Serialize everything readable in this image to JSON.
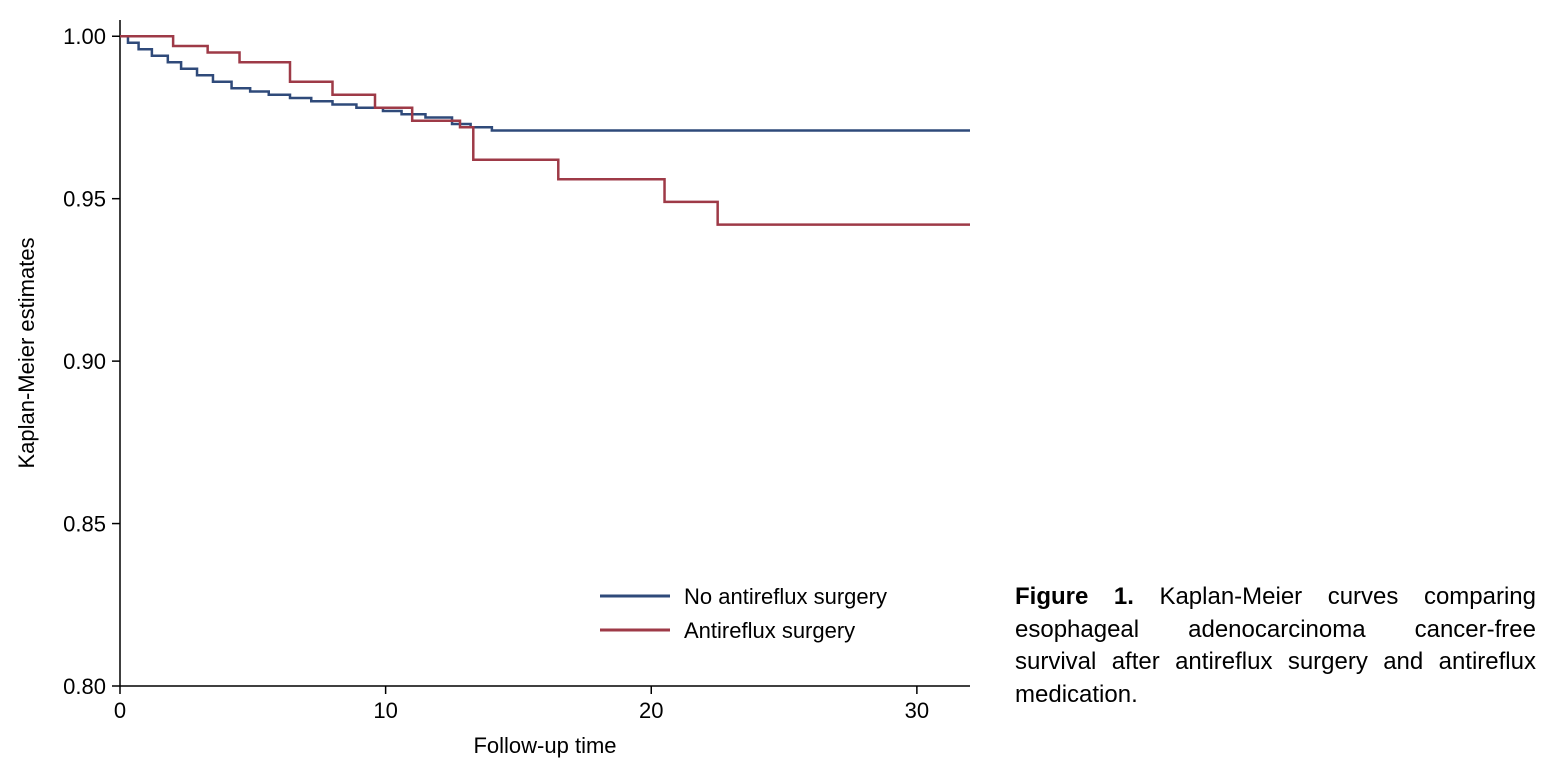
{
  "chart": {
    "type": "line",
    "background_color": "#ffffff",
    "plot_border_width": 0,
    "xlabel": "Follow-up time",
    "ylabel": "Kaplan-Meier estimates",
    "label_fontsize": 22,
    "tick_fontsize": 22,
    "xlim": [
      0,
      32
    ],
    "ylim": [
      0.8,
      1.005
    ],
    "xticks": [
      0,
      10,
      20,
      30
    ],
    "yticks": [
      0.8,
      0.85,
      0.9,
      0.95,
      1.0
    ],
    "ytick_labels": [
      "0.80",
      "0.85",
      "0.90",
      "0.95",
      "1.00"
    ],
    "xtick_labels": [
      "0",
      "10",
      "20",
      "30"
    ],
    "grid": false,
    "line_width": 2.5,
    "series": [
      {
        "name": "No antireflux surgery",
        "color": "#2f4a7a",
        "step": "post",
        "points": [
          [
            0,
            1.0
          ],
          [
            0.3,
            0.998
          ],
          [
            0.7,
            0.996
          ],
          [
            1.2,
            0.994
          ],
          [
            1.8,
            0.992
          ],
          [
            2.3,
            0.99
          ],
          [
            2.9,
            0.988
          ],
          [
            3.5,
            0.986
          ],
          [
            4.2,
            0.984
          ],
          [
            4.9,
            0.983
          ],
          [
            5.6,
            0.982
          ],
          [
            6.4,
            0.981
          ],
          [
            7.2,
            0.98
          ],
          [
            8.0,
            0.979
          ],
          [
            8.9,
            0.978
          ],
          [
            9.9,
            0.977
          ],
          [
            10.6,
            0.976
          ],
          [
            11.5,
            0.975
          ],
          [
            12.5,
            0.973
          ],
          [
            13.2,
            0.972
          ],
          [
            14.0,
            0.971
          ],
          [
            32.0,
            0.971
          ]
        ]
      },
      {
        "name": "Antireflux surgery",
        "color": "#9e3a47",
        "step": "post",
        "points": [
          [
            0,
            1.0
          ],
          [
            2.0,
            1.0
          ],
          [
            2.0,
            0.997
          ],
          [
            3.3,
            0.997
          ],
          [
            3.3,
            0.995
          ],
          [
            4.5,
            0.995
          ],
          [
            4.5,
            0.992
          ],
          [
            6.4,
            0.992
          ],
          [
            6.4,
            0.986
          ],
          [
            8.0,
            0.986
          ],
          [
            8.0,
            0.982
          ],
          [
            9.6,
            0.982
          ],
          [
            9.6,
            0.978
          ],
          [
            11.0,
            0.978
          ],
          [
            11.0,
            0.974
          ],
          [
            12.8,
            0.974
          ],
          [
            12.8,
            0.972
          ],
          [
            13.3,
            0.972
          ],
          [
            13.3,
            0.962
          ],
          [
            16.5,
            0.962
          ],
          [
            16.5,
            0.956
          ],
          [
            20.5,
            0.956
          ],
          [
            20.5,
            0.949
          ],
          [
            22.5,
            0.949
          ],
          [
            22.5,
            0.942
          ],
          [
            32.0,
            0.942
          ]
        ]
      }
    ],
    "legend": {
      "position": "bottom-right-inside",
      "fontsize": 22,
      "swatch_length": 70,
      "items": [
        {
          "series": 0,
          "label": "No antireflux surgery"
        },
        {
          "series": 1,
          "label": "Antireflux surgery"
        }
      ]
    }
  },
  "caption": {
    "label": "Figure 1.",
    "text_parts": [
      "Kaplan-Meier curves comparing esophageal adenocarcinoma cancer-free survival after antireflux surgery and antireflux medication."
    ]
  }
}
